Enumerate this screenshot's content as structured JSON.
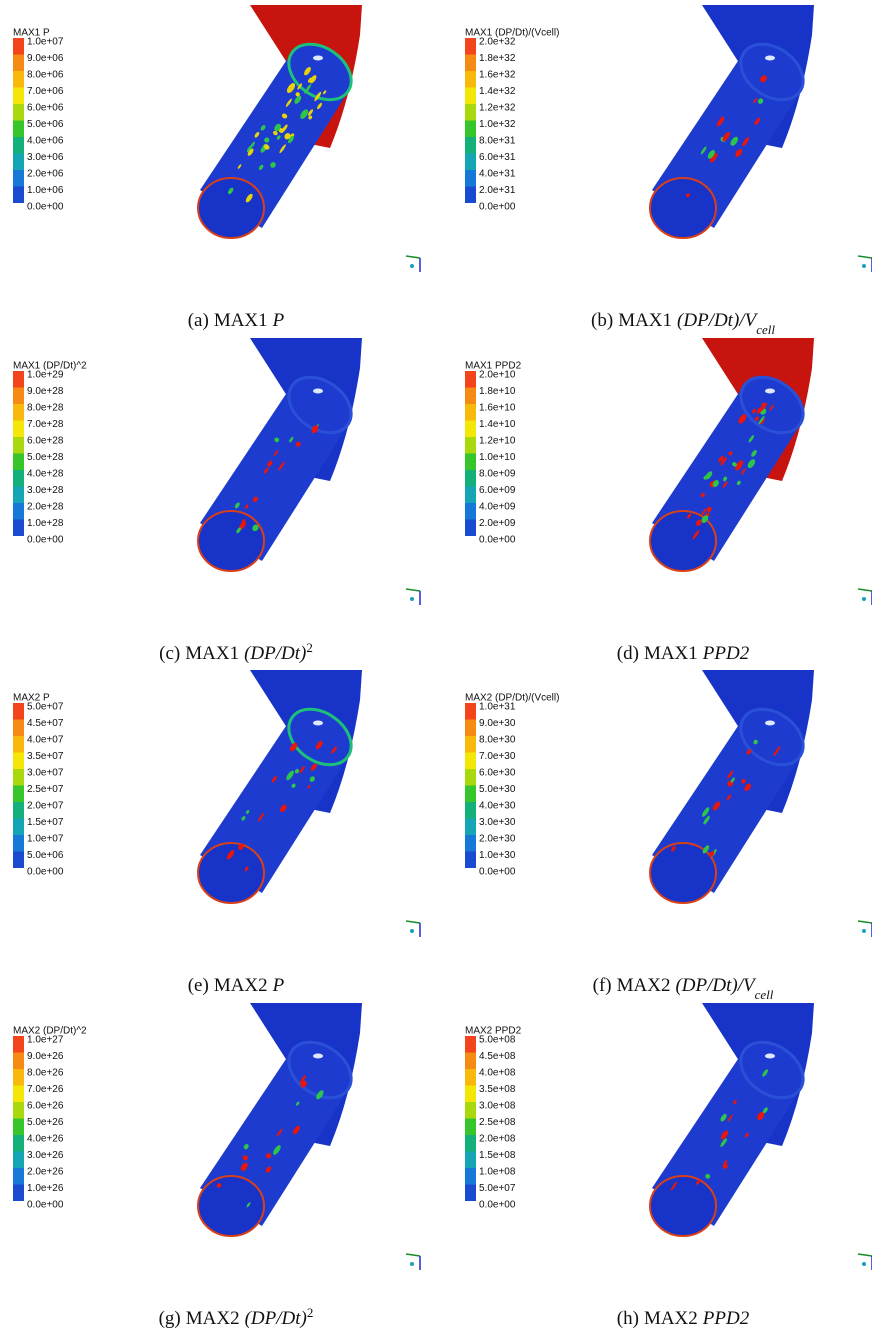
{
  "panels": [
    {
      "legend_title": "MAX1  P",
      "legend_labels": [
        "1.0e+07",
        "9.0e+06",
        "8.0e+06",
        "7.0e+06",
        "6.0e+06",
        "5.0e+06",
        "4.0e+06",
        "3.0e+06",
        "2.0e+06",
        "1.0e+06",
        "0.0e+00"
      ],
      "caption": {
        "label": "(a)",
        "case": "MAX1",
        "symbol": "P"
      }
    },
    {
      "legend_title": "MAX1 (DP/Dt)/(Vcell)",
      "legend_labels": [
        "2.0e+32",
        "1.8e+32",
        "1.6e+32",
        "1.4e+32",
        "1.2e+32",
        "1.0e+32",
        "8.0e+31",
        "6.0e+31",
        "4.0e+31",
        "2.0e+31",
        "0.0e+00"
      ],
      "caption": {
        "label": "(b)",
        "case": "MAX1",
        "symbol": "(DP/Dt)/V",
        "sub": "cell"
      }
    },
    {
      "legend_title": "MAX1 (DP/Dt)^2",
      "legend_labels": [
        "1.0e+29",
        "9.0e+28",
        "8.0e+28",
        "7.0e+28",
        "6.0e+28",
        "5.0e+28",
        "4.0e+28",
        "3.0e+28",
        "2.0e+28",
        "1.0e+28",
        "0.0e+00"
      ],
      "caption": {
        "label": "(c)",
        "case": "MAX1",
        "symbol": "(DP/Dt)",
        "sup": "2"
      }
    },
    {
      "legend_title": "MAX1 PPD2",
      "legend_labels": [
        "2.0e+10",
        "1.8e+10",
        "1.6e+10",
        "1.4e+10",
        "1.2e+10",
        "1.0e+10",
        "8.0e+09",
        "6.0e+09",
        "4.0e+09",
        "2.0e+09",
        "0.0e+00"
      ],
      "caption": {
        "label": "(d)",
        "case": "MAX1",
        "symbol": "PPD2"
      }
    },
    {
      "legend_title": "MAX2  P",
      "legend_labels": [
        "5.0e+07",
        "4.5e+07",
        "4.0e+07",
        "3.5e+07",
        "3.0e+07",
        "2.5e+07",
        "2.0e+07",
        "1.5e+07",
        "1.0e+07",
        "5.0e+06",
        "0.0e+00"
      ],
      "caption": {
        "label": "(e)",
        "case": "MAX2",
        "symbol": "P"
      }
    },
    {
      "legend_title": "MAX2 (DP/Dt)/(Vcell)",
      "legend_labels": [
        "1.0e+31",
        "9.0e+30",
        "8.0e+30",
        "7.0e+30",
        "6.0e+30",
        "5.0e+30",
        "4.0e+30",
        "3.0e+30",
        "2.0e+30",
        "1.0e+30",
        "0.0e+00"
      ],
      "caption": {
        "label": "(f)",
        "case": "MAX2",
        "symbol": "(DP/Dt)/V",
        "sub": "cell"
      }
    },
    {
      "legend_title": "MAX2 (DP/Dt)^2",
      "legend_labels": [
        "1.0e+27",
        "9.0e+26",
        "8.0e+26",
        "7.0e+26",
        "6.0e+26",
        "5.0e+26",
        "4.0e+26",
        "3.0e+26",
        "2.0e+26",
        "1.0e+26",
        "0.0e+00"
      ],
      "caption": {
        "label": "(g)",
        "case": "MAX2",
        "symbol": "(DP/Dt)",
        "sup": "2"
      }
    },
    {
      "legend_title": "MAX2 PPD2",
      "legend_labels": [
        "5.0e+08",
        "4.5e+08",
        "4.0e+08",
        "3.5e+08",
        "3.0e+08",
        "2.5e+08",
        "2.0e+08",
        "1.5e+08",
        "1.0e+08",
        "5.0e+07",
        "0.0e+00"
      ],
      "caption": {
        "label": "(h)",
        "case": "MAX2",
        "symbol": "PPD2"
      }
    }
  ]
}
